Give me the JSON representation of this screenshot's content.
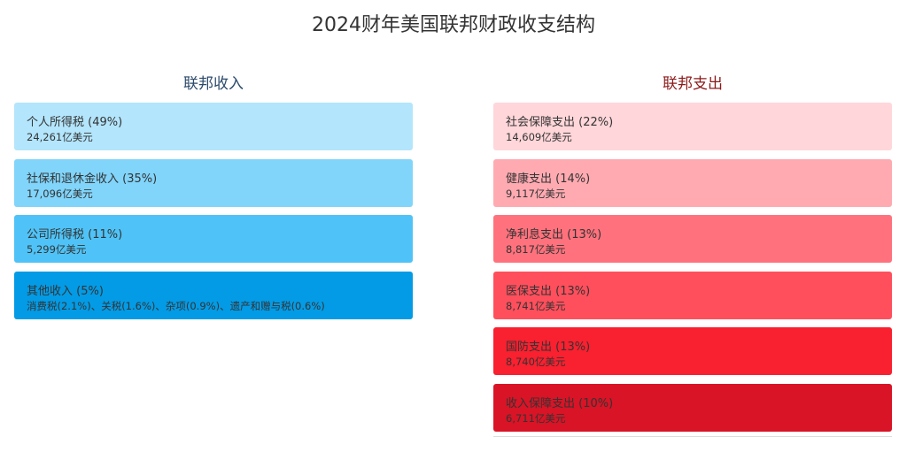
{
  "title": "2024财年美国联邦财政收支结构",
  "income": {
    "title": "联邦收入",
    "items": [
      {
        "label": "个人所得税 (49%)",
        "sub": "24,261亿美元",
        "color": "#b3e5fc"
      },
      {
        "label": "社保和退休金收入 (35%)",
        "sub": "17,096亿美元",
        "color": "#81d4fa"
      },
      {
        "label": "公司所得税 (11%)",
        "sub": "5,299亿美元",
        "color": "#4fc3f7"
      },
      {
        "label": "其他收入 (5%)",
        "sub": "消费税(2.1%)、关税(1.6%)、杂项(0.9%)、遗产和赠与税(0.6%)",
        "color": "#039be5"
      }
    ]
  },
  "expense": {
    "title": "联邦支出",
    "items": [
      {
        "label": "社会保障支出 (22%)",
        "sub": "14,609亿美元",
        "color": "#ffd6d9"
      },
      {
        "label": "健康支出 (14%)",
        "sub": "9,117亿美元",
        "color": "#ffaab1"
      },
      {
        "label": "净利息支出 (13%)",
        "sub": "8,817亿美元",
        "color": "#ff727d"
      },
      {
        "label": "医保支出 (13%)",
        "sub": "8,741亿美元",
        "color": "#ff4f5c"
      },
      {
        "label": "国防支出 (13%)",
        "sub": "8,740亿美元",
        "color": "#f9202f"
      },
      {
        "label": "收入保障支出 (10%)",
        "sub": "6,711亿美元",
        "color": "#d81426"
      }
    ]
  },
  "chart_data": {
    "type": "table",
    "title": "2024财年美国联邦财政收支结构",
    "series": [
      {
        "name": "联邦收入",
        "categories": [
          "个人所得税",
          "社保和退休金收入",
          "公司所得税",
          "其他收入"
        ],
        "percent": [
          49,
          35,
          11,
          5
        ],
        "values_100m_usd": [
          24261,
          17096,
          5299,
          null
        ],
        "other_breakdown_percent": {
          "消费税": 2.1,
          "关税": 1.6,
          "杂项": 0.9,
          "遗产和赠与税": 0.6
        }
      },
      {
        "name": "联邦支出",
        "categories": [
          "社会保障支出",
          "健康支出",
          "净利息支出",
          "医保支出",
          "国防支出",
          "收入保障支出"
        ],
        "percent": [
          22,
          14,
          13,
          13,
          13,
          10
        ],
        "values_100m_usd": [
          14609,
          9117,
          8817,
          8741,
          8740,
          6711
        ]
      }
    ]
  }
}
